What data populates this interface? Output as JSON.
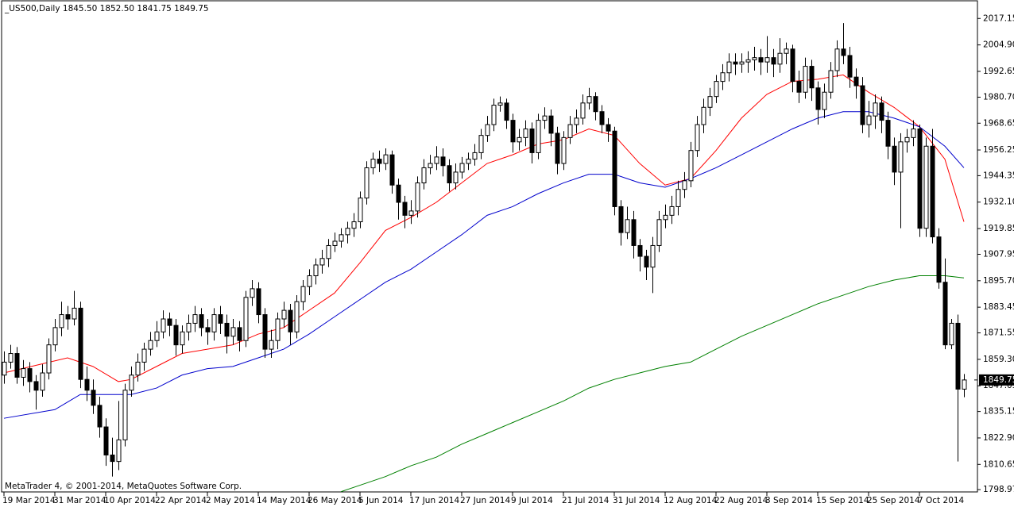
{
  "chart_data": {
    "type": "candlestick",
    "title": "_US500,Daily  1845.50 1852.50 1841.75 1849.75",
    "copyright": "MetaTrader 4, © 2001-2014, MetaQuotes Software Corp.",
    "categories": [
      "19 Mar 2014",
      null,
      null,
      null,
      null,
      null,
      null,
      null,
      "31 Mar 2014",
      null,
      null,
      null,
      null,
      null,
      null,
      null,
      "10 Apr 2014",
      null,
      null,
      null,
      null,
      null,
      null,
      null,
      "22 Apr 2014",
      null,
      null,
      null,
      null,
      null,
      null,
      null,
      "2 May 2014",
      null,
      null,
      null,
      null,
      null,
      null,
      null,
      "14 May 2014",
      null,
      null,
      null,
      null,
      null,
      null,
      null,
      "26 May 2014",
      null,
      null,
      null,
      null,
      null,
      null,
      null,
      "5 Jun 2014",
      null,
      null,
      null,
      null,
      null,
      null,
      null,
      "17 Jun 2014",
      null,
      null,
      null,
      null,
      null,
      null,
      null,
      "27 Jun 2014",
      null,
      null,
      null,
      null,
      null,
      null,
      null,
      "9 Jul 2014",
      null,
      null,
      null,
      null,
      null,
      null,
      null,
      "21 Jul 2014",
      null,
      null,
      null,
      null,
      null,
      null,
      null,
      "31 Jul 2014",
      null,
      null,
      null,
      null,
      null,
      null,
      null,
      "12 Aug 2014",
      null,
      null,
      null,
      null,
      null,
      null,
      null,
      "22 Aug 2014",
      null,
      null,
      null,
      null,
      null,
      null,
      null,
      "3 Sep 2014",
      null,
      null,
      null,
      null,
      null,
      null,
      null,
      "15 Sep 2014",
      null,
      null,
      null,
      null,
      null,
      null,
      null,
      "25 Sep 2014",
      null,
      null,
      null,
      null,
      null,
      null,
      null,
      "7 Oct 2014",
      null,
      null,
      null,
      null,
      null,
      null,
      null
    ],
    "open": [
      1852,
      1858,
      1862,
      1851,
      1855,
      1849,
      1845,
      1853,
      1866,
      1874,
      1880,
      1878,
      1883,
      1850,
      1845,
      1838,
      1828,
      1815,
      1812,
      1822,
      1845,
      1852,
      1858,
      1864,
      1868,
      1872,
      1878,
      1875,
      1866,
      1872,
      1876,
      1880,
      1874,
      1872,
      1880,
      1876,
      1870,
      1874,
      1868,
      1888,
      1892,
      1880,
      1864,
      1868,
      1878,
      1882,
      1872,
      1886,
      1893,
      1898,
      1903,
      1906,
      1912,
      1914,
      1917,
      1920,
      1923,
      1934,
      1948,
      1952,
      1950,
      1954,
      1940,
      1932,
      1926,
      1928,
      1941,
      1948,
      1950,
      1953,
      1949,
      1941,
      1946,
      1950,
      1952,
      1955,
      1963,
      1968,
      1977,
      1978,
      1970,
      1960,
      1962,
      1966,
      1955,
      1970,
      1972,
      1964,
      1950,
      1962,
      1968,
      1971,
      1978,
      1981,
      1974,
      1968,
      1965,
      1930,
      1918,
      1924,
      1912,
      1907,
      1902,
      1912,
      1924,
      1926,
      1930,
      1938,
      1942,
      1956,
      1968,
      1976,
      1981,
      1988,
      1992,
      1997,
      1996,
      1997,
      1998,
      1999,
      1997,
      1999,
      1996,
      2001,
      2003,
      1988,
      1983,
      1995,
      1985,
      1975,
      1983,
      1993,
      2003,
      2000,
      1990,
      1986,
      1968,
      1972,
      1978,
      1970,
      1958,
      1946,
      1960,
      1962,
      1966,
      1920,
      1958,
      1916,
      1895,
      1866,
      1876,
      1845.5
    ],
    "high": [
      1863,
      1866,
      1865,
      1859,
      1858,
      1852,
      1857,
      1869,
      1878,
      1886,
      1884,
      1891,
      1886,
      1856,
      1850,
      1842,
      1832,
      1823,
      1840,
      1848,
      1856,
      1862,
      1867,
      1872,
      1877,
      1882,
      1881,
      1878,
      1875,
      1880,
      1884,
      1883,
      1878,
      1883,
      1884,
      1880,
      1878,
      1877,
      1891,
      1896,
      1895,
      1883,
      1873,
      1881,
      1886,
      1885,
      1889,
      1896,
      1901,
      1906,
      1910,
      1915,
      1918,
      1920,
      1923,
      1927,
      1937,
      1951,
      1955,
      1956,
      1957,
      1956,
      1943,
      1935,
      1933,
      1944,
      1952,
      1954,
      1958,
      1957,
      1952,
      1950,
      1953,
      1955,
      1959,
      1966,
      1972,
      1980,
      1981,
      1980,
      1973,
      1966,
      1970,
      1969,
      1973,
      1976,
      1975,
      1967,
      1965,
      1972,
      1975,
      1982,
      1985,
      1983,
      1977,
      1971,
      1967,
      1933,
      1930,
      1928,
      1915,
      1910,
      1916,
      1928,
      1931,
      1935,
      1942,
      1946,
      1960,
      1972,
      1980,
      1985,
      1991,
      1996,
      2001,
      2001,
      2001,
      2002,
      2004,
      2003,
      2009,
      2003,
      2008,
      2006,
      2005,
      1993,
      1999,
      1998,
      1988,
      1987,
      1997,
      2007,
      2015,
      2004,
      1994,
      1990,
      1979,
      1982,
      1981,
      1974,
      1962,
      1964,
      1966,
      1970,
      1968,
      1962,
      1966,
      1920,
      1906,
      1878,
      1880,
      1852.5
    ],
    "low": [
      1848,
      1855,
      1848,
      1847,
      1844,
      1836,
      1842,
      1850,
      1863,
      1870,
      1873,
      1875,
      1846,
      1840,
      1834,
      1823,
      1810,
      1805,
      1808,
      1819,
      1842,
      1849,
      1854,
      1861,
      1865,
      1869,
      1870,
      1861,
      1862,
      1868,
      1872,
      1870,
      1866,
      1868,
      1871,
      1862,
      1866,
      1863,
      1865,
      1884,
      1876,
      1860,
      1860,
      1864,
      1874,
      1866,
      1869,
      1882,
      1889,
      1894,
      1899,
      1902,
      1909,
      1911,
      1913,
      1916,
      1920,
      1931,
      1945,
      1946,
      1947,
      1936,
      1924,
      1920,
      1922,
      1925,
      1938,
      1945,
      1947,
      1944,
      1937,
      1938,
      1943,
      1947,
      1949,
      1952,
      1960,
      1965,
      1974,
      1966,
      1955,
      1956,
      1958,
      1950,
      1952,
      1966,
      1958,
      1945,
      1947,
      1959,
      1964,
      1968,
      1975,
      1970,
      1964,
      1960,
      1926,
      1912,
      1915,
      1906,
      1900,
      1896,
      1890,
      1909,
      1920,
      1922,
      1926,
      1934,
      1939,
      1953,
      1964,
      1972,
      1978,
      1984,
      1988,
      1991,
      1992,
      1992,
      1993,
      1991,
      1992,
      1990,
      1992,
      1996,
      1983,
      1978,
      1980,
      1979,
      1968,
      1971,
      1980,
      1990,
      1996,
      1985,
      1980,
      1964,
      1962,
      1966,
      1964,
      1952,
      1940,
      1920,
      1955,
      1958,
      1916,
      1916,
      1913,
      1892,
      1864,
      1864,
      1812,
      1841.75
    ],
    "close": [
      1858,
      1862,
      1851,
      1855,
      1849,
      1845,
      1853,
      1866,
      1874,
      1880,
      1878,
      1883,
      1850,
      1845,
      1838,
      1828,
      1815,
      1812,
      1822,
      1845,
      1852,
      1858,
      1864,
      1868,
      1872,
      1878,
      1875,
      1866,
      1872,
      1876,
      1880,
      1874,
      1872,
      1880,
      1876,
      1870,
      1874,
      1868,
      1888,
      1892,
      1880,
      1864,
      1868,
      1878,
      1882,
      1872,
      1886,
      1893,
      1898,
      1903,
      1906,
      1912,
      1914,
      1917,
      1920,
      1923,
      1934,
      1948,
      1952,
      1950,
      1954,
      1940,
      1932,
      1926,
      1928,
      1941,
      1948,
      1950,
      1953,
      1949,
      1941,
      1946,
      1950,
      1952,
      1955,
      1963,
      1968,
      1977,
      1978,
      1970,
      1960,
      1962,
      1966,
      1955,
      1970,
      1972,
      1964,
      1950,
      1962,
      1968,
      1971,
      1978,
      1981,
      1974,
      1968,
      1965,
      1930,
      1918,
      1924,
      1912,
      1907,
      1902,
      1912,
      1924,
      1926,
      1930,
      1938,
      1942,
      1956,
      1968,
      1976,
      1981,
      1988,
      1992,
      1997,
      1996,
      1997,
      1998,
      1999,
      1997,
      1999,
      1996,
      2001,
      2003,
      1988,
      1983,
      1995,
      1985,
      1975,
      1983,
      1993,
      2003,
      2000,
      1990,
      1986,
      1968,
      1972,
      1978,
      1970,
      1958,
      1946,
      1960,
      1962,
      1966,
      1920,
      1958,
      1916,
      1895,
      1866,
      1876,
      1845.5,
      1849.75
    ],
    "up_color": "#ffffff",
    "down_color": "#000000",
    "lines": [
      {
        "color": "#ff0000",
        "x": [
          0,
          10,
          14,
          18,
          20,
          24,
          28,
          32,
          36,
          40,
          44,
          48,
          52,
          56,
          60,
          64,
          68,
          72,
          76,
          80,
          84,
          88,
          92,
          96,
          100,
          104,
          108,
          112,
          116,
          120,
          124,
          128,
          132,
          136,
          140,
          144,
          148,
          151
        ],
        "values": [
          1853,
          1860,
          1856,
          1849,
          1850,
          1856,
          1862,
          1864,
          1866,
          1871,
          1874,
          1882,
          1890,
          1904,
          1919,
          1925,
          1932,
          1941,
          1950,
          1954,
          1959,
          1961,
          1966,
          1963,
          1950,
          1940,
          1943,
          1956,
          1971,
          1982,
          1988,
          1989,
          1991,
          1983,
          1976,
          1967,
          1952,
          1923
        ]
      },
      {
        "color": "#0000cc",
        "x": [
          0,
          8,
          12,
          16,
          20,
          24,
          28,
          32,
          36,
          40,
          44,
          48,
          52,
          56,
          60,
          64,
          68,
          72,
          76,
          80,
          84,
          88,
          92,
          96,
          100,
          104,
          108,
          112,
          116,
          120,
          124,
          128,
          132,
          136,
          140,
          144,
          148,
          151
        ],
        "values": [
          1832,
          1836,
          1843,
          1843,
          1843,
          1846,
          1852,
          1855,
          1856,
          1860,
          1864,
          1871,
          1879,
          1887,
          1895,
          1901,
          1909,
          1917,
          1926,
          1930,
          1936,
          1941,
          1945,
          1945,
          1941,
          1939,
          1943,
          1948,
          1954,
          1960,
          1966,
          1971,
          1974,
          1974,
          1971,
          1967,
          1958,
          1948
        ]
      },
      {
        "color": "#008000",
        "x": [
          53,
          56,
          60,
          64,
          68,
          72,
          76,
          80,
          84,
          88,
          92,
          96,
          100,
          104,
          108,
          112,
          116,
          120,
          124,
          128,
          132,
          136,
          140,
          144,
          148,
          151
        ],
        "values": [
          1798,
          1801,
          1805,
          1810,
          1814,
          1820,
          1825,
          1830,
          1835,
          1840,
          1846,
          1850,
          1853,
          1856,
          1858,
          1864,
          1870,
          1875,
          1880,
          1885,
          1889,
          1893,
          1896,
          1898,
          1898,
          1897
        ]
      }
    ],
    "last_price": 1849.75,
    "ylim": [
      1797.9,
      2025.7
    ],
    "yticks": [
      2017.15,
      {
        "value": 2004.9,
        "label": "2004.90"
      },
      1992.65,
      {
        "value": 1980.7,
        "label": "1980.70"
      },
      1968.65,
      1956.25,
      1944.35,
      {
        "value": 1932.1,
        "label": "1932.10"
      },
      1919.85,
      1907.95,
      {
        "value": 1895.7,
        "label": "1895.70"
      },
      1883.45,
      1871.55,
      {
        "value": 1859.3,
        "label": "1859.30"
      },
      1847.05,
      1835.15,
      {
        "value": 1822.9,
        "label": "1822.90"
      },
      1810.65,
      1798.97
    ]
  }
}
